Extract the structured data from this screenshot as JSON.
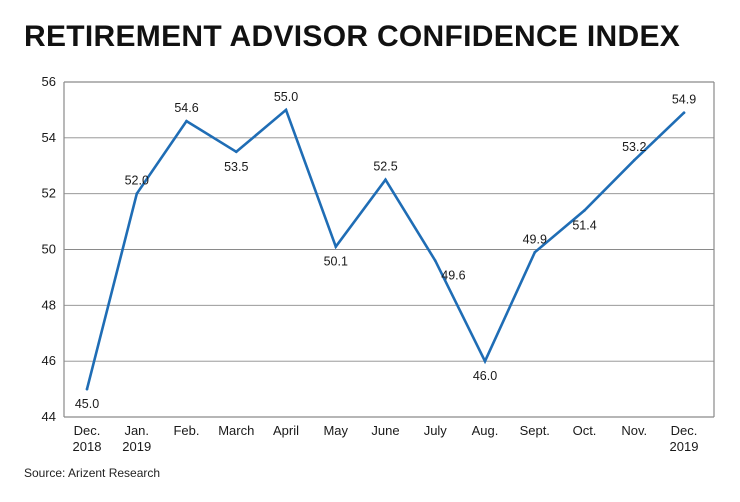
{
  "chart_data": {
    "type": "line",
    "title": "RETIREMENT ADVISOR CONFIDENCE INDEX",
    "xlabel": "",
    "ylabel": "",
    "ylim": [
      44,
      56
    ],
    "yticks": [
      44,
      46,
      48,
      50,
      52,
      54,
      56
    ],
    "grid": true,
    "categories": [
      [
        "Dec.",
        "2018"
      ],
      [
        "Jan.",
        "2019"
      ],
      [
        "Feb."
      ],
      [
        "March"
      ],
      [
        "April"
      ],
      [
        "May"
      ],
      [
        "June"
      ],
      [
        "July"
      ],
      [
        "Aug."
      ],
      [
        "Sept."
      ],
      [
        "Oct."
      ],
      [
        "Nov."
      ],
      [
        "Dec.",
        "2019"
      ]
    ],
    "series": [
      {
        "name": "Retirement Advisor Confidence Index",
        "values": [
          45.0,
          52.0,
          54.6,
          53.5,
          55.0,
          50.1,
          52.5,
          49.6,
          46.0,
          49.9,
          51.4,
          53.2,
          54.9
        ],
        "labels": [
          "45.0",
          "52.0",
          "54.6",
          "53.5",
          "55.0",
          "50.1",
          "52.5",
          "49.6",
          "46.0",
          "49.9",
          "51.4",
          "53.2",
          "54.9"
        ],
        "label_positions": [
          "below",
          "above",
          "above",
          "below",
          "above",
          "below",
          "above",
          "right",
          "below",
          "above",
          "below",
          "above",
          "above"
        ]
      }
    ],
    "line_color": "#1f6db5",
    "grid_color": "#8a8a8a",
    "source": "Source: Arizent Research"
  }
}
